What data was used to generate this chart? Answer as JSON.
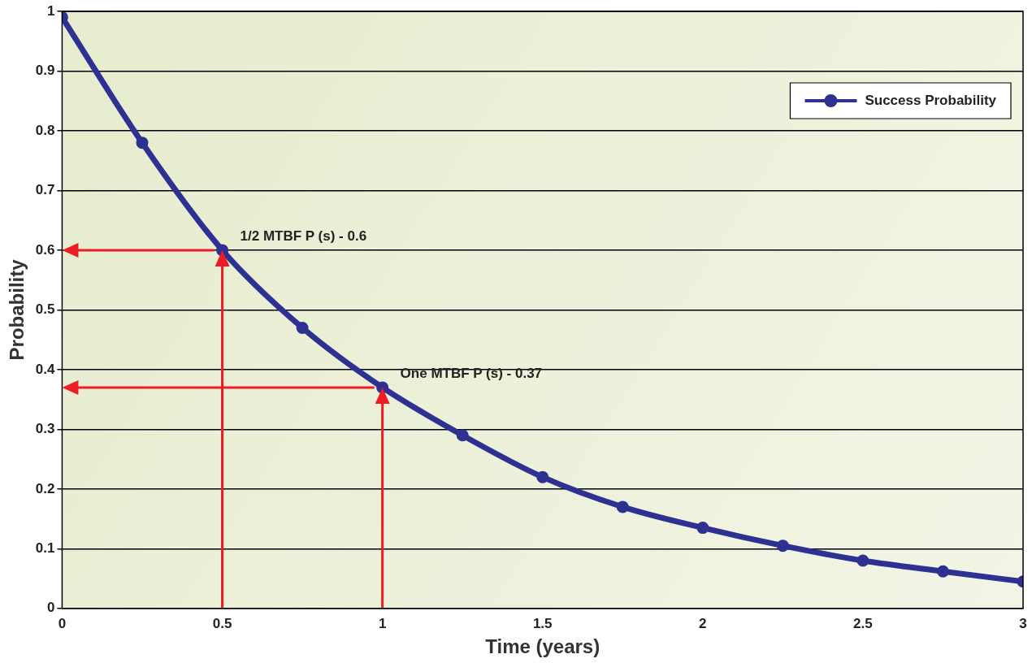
{
  "chart_data": {
    "type": "line",
    "xlabel": "Time (years)",
    "ylabel": "Probability",
    "x": [
      0,
      0.25,
      0.5,
      0.75,
      1,
      1.25,
      1.5,
      1.75,
      2,
      2.25,
      2.5,
      2.75,
      3
    ],
    "series": [
      {
        "name": "Success Probability",
        "color": "#2e3192",
        "values": [
          0.99,
          0.78,
          0.6,
          0.47,
          0.37,
          0.29,
          0.22,
          0.17,
          0.135,
          0.105,
          0.08,
          0.062,
          0.045
        ]
      }
    ],
    "xlim": [
      0,
      3
    ],
    "xticks": [
      0,
      0.5,
      1,
      1.5,
      2,
      2.5,
      3
    ],
    "ylim": [
      0,
      1
    ],
    "yticks": [
      0,
      0.1,
      0.2,
      0.3,
      0.4,
      0.5,
      0.6,
      0.7,
      0.8,
      0.9,
      1
    ],
    "grid": "y",
    "legend": "top right",
    "marker": "circle",
    "line_style": "solid",
    "annotations": [
      {
        "text": "1/2 MTBF P (s) - 0.6",
        "x": 0.5,
        "y": 0.6
      },
      {
        "text": "One MTBF P (s) - 0.37",
        "x": 1,
        "y": 0.37
      }
    ]
  }
}
